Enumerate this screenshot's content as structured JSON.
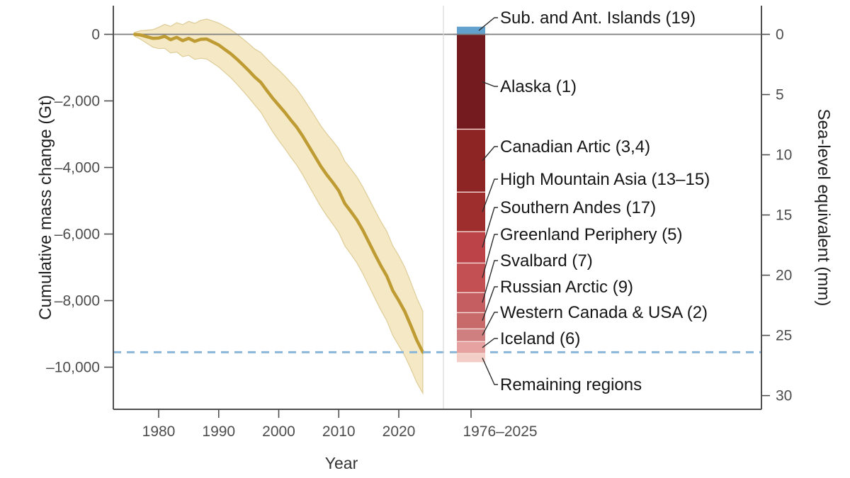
{
  "figure": {
    "background": "#ffffff",
    "text_color": "#161616",
    "axis_color": "#4f4f4f",
    "tick_label_color": "#4d4d4d",
    "zero_line_color": "#7d7d7d",
    "separator_color": "#d8d8d8"
  },
  "axes": {
    "left": {
      "title": "Cumulative mass change (Gt)",
      "ticks": [
        {
          "gt": 0,
          "label": "0"
        },
        {
          "gt": -2000,
          "label": "–2,000"
        },
        {
          "gt": -4000,
          "label": "–4,000"
        },
        {
          "gt": -6000,
          "label": "–6,000"
        },
        {
          "gt": -8000,
          "label": "–8,000"
        },
        {
          "gt": -10000,
          "label": "–10,000"
        }
      ]
    },
    "right": {
      "title": "Sea-level equivalent (mm)",
      "ticks": [
        {
          "mm": 0,
          "label": "0"
        },
        {
          "mm": 5,
          "label": "5"
        },
        {
          "mm": 10,
          "label": "10"
        },
        {
          "mm": 15,
          "label": "15"
        },
        {
          "mm": 20,
          "label": "20"
        },
        {
          "mm": 25,
          "label": "25"
        },
        {
          "mm": 30,
          "label": "30"
        }
      ]
    },
    "x": {
      "title": "Year",
      "ticks": [
        {
          "year": 1980,
          "label": "1980"
        },
        {
          "year": 1990,
          "label": "1990"
        },
        {
          "year": 2000,
          "label": "2000"
        },
        {
          "year": 2010,
          "label": "2010"
        },
        {
          "year": 2020,
          "label": "2020"
        }
      ],
      "bar_tick_label": "1976–2025"
    }
  },
  "chart_data": [
    {
      "type": "line",
      "name": "global-cumulative-glacier-mass-change",
      "xlabel": "Year",
      "ylabel_left": "Cumulative mass change (Gt)",
      "ylabel_right": "Sea-level equivalent (mm)",
      "gt_per_mm_sea_level": 361.8,
      "line_color": "#be9c33",
      "band_fill": "#f5e8c5",
      "band_edge": "#ddcc97",
      "x_years": [
        1976,
        1977,
        1978,
        1979,
        1980,
        1981,
        1982,
        1983,
        1984,
        1985,
        1986,
        1987,
        1988,
        1989,
        1990,
        1991,
        1992,
        1993,
        1994,
        1995,
        1996,
        1997,
        1998,
        1999,
        2000,
        2001,
        2002,
        2003,
        2004,
        2005,
        2006,
        2007,
        2008,
        2009,
        2010,
        2011,
        2012,
        2013,
        2014,
        2015,
        2016,
        2017,
        2018,
        2019,
        2020,
        2021,
        2022,
        2023,
        2024
      ],
      "cumulative_mass_change_gt": [
        0,
        -20,
        -70,
        -120,
        -110,
        -60,
        -160,
        -90,
        -190,
        -120,
        -210,
        -150,
        -140,
        -230,
        -320,
        -450,
        -580,
        -740,
        -910,
        -1090,
        -1280,
        -1440,
        -1680,
        -1920,
        -2130,
        -2340,
        -2570,
        -2790,
        -3060,
        -3360,
        -3660,
        -3960,
        -4220,
        -4450,
        -4700,
        -5080,
        -5320,
        -5570,
        -5880,
        -6240,
        -6600,
        -6950,
        -7260,
        -7700,
        -8000,
        -8330,
        -8750,
        -9190,
        -9550
      ],
      "uncertainty_halfwidth_gt": [
        60,
        130,
        195,
        260,
        320,
        360,
        400,
        440,
        480,
        510,
        540,
        570,
        600,
        630,
        660,
        690,
        720,
        750,
        780,
        810,
        840,
        895,
        950,
        1005,
        1060,
        1090,
        1120,
        1140,
        1160,
        1180,
        1200,
        1215,
        1230,
        1245,
        1260,
        1270,
        1280,
        1290,
        1300,
        1310,
        1320,
        1330,
        1340,
        1345,
        1350,
        1330,
        1300,
        1270,
        1230
      ],
      "reference_line": {
        "style": "dashed",
        "color": "#8ab7d9",
        "value_gt": -9550,
        "value_sle_mm": 26.4
      }
    },
    {
      "type": "bar",
      "stacked": true,
      "name": "regional-contributions-1976-2025",
      "category_label": "1976–2025",
      "segment_divider_color": "#f6ddd9",
      "segments": [
        {
          "key": "sub-ant-islands",
          "label": "Sub. and Ant. Islands (19)",
          "gt": 230,
          "direction": "gain",
          "color": "#62a1ce"
        },
        {
          "key": "alaska",
          "label": "Alaska (1)",
          "gt": 2850,
          "direction": "loss",
          "color": "#731b1e"
        },
        {
          "key": "canadian-artic",
          "label": "Canadian Artic (3,4)",
          "gt": 1890,
          "direction": "loss",
          "color": "#8e2525"
        },
        {
          "key": "high-mountain-asia",
          "label": "High Mountain Asia (13–15)",
          "gt": 1190,
          "direction": "loss",
          "color": "#9e2e2d"
        },
        {
          "key": "southern-andes",
          "label": "Southern Andes (17)",
          "gt": 940,
          "direction": "loss",
          "color": "#bc4449"
        },
        {
          "key": "greenland-periphery",
          "label": "Greenland Periphery (5)",
          "gt": 890,
          "direction": "loss",
          "color": "#c35153"
        },
        {
          "key": "svalbard",
          "label": "Svalbard (7)",
          "gt": 600,
          "direction": "loss",
          "color": "#c45e60"
        },
        {
          "key": "russian-arctic",
          "label": "Russian Arctic (9)",
          "gt": 490,
          "direction": "loss",
          "color": "#c96a6a"
        },
        {
          "key": "western-canada-usa",
          "label": "Western Canada & USA (2)",
          "gt": 380,
          "direction": "loss",
          "color": "#cf7f80"
        },
        {
          "key": "iceland",
          "label": "Iceland (6)",
          "gt": 360,
          "direction": "loss",
          "color": "#e6a2a0"
        },
        {
          "key": "remaining-regions",
          "label": "Remaining regions",
          "gt": 260,
          "direction": "loss",
          "color": "#f3cec7"
        }
      ]
    }
  ]
}
